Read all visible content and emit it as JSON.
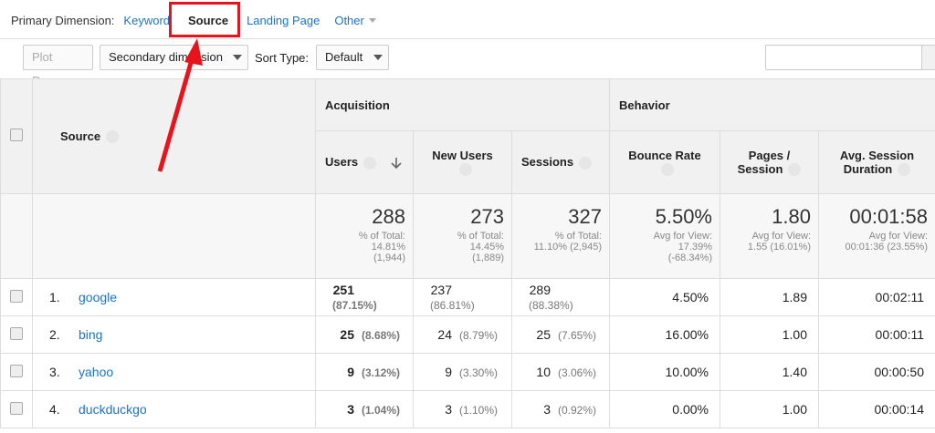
{
  "primary_dimension": {
    "label": "Primary Dimension:",
    "options": [
      "Keyword",
      "Source",
      "Landing Page",
      "Other"
    ]
  },
  "toolbar": {
    "plot_rows": "Plot Rows",
    "secondary_dimension": "Secondary dimension",
    "sort_type_label": "Sort Type:",
    "sort_type": "Default"
  },
  "table": {
    "dimension_header": "Source",
    "groups": [
      "Acquisition",
      "Behavior"
    ],
    "columns": [
      "Users",
      "New Users",
      "Sessions",
      "Bounce Rate",
      "Pages / Session",
      "Avg. Session Duration"
    ],
    "totals": [
      {
        "value": "288",
        "note": [
          "% of Total:",
          "14.81%",
          "(1,944)"
        ]
      },
      {
        "value": "273",
        "note": [
          "% of Total:",
          "14.45%",
          "(1,889)"
        ]
      },
      {
        "value": "327",
        "note": [
          "% of Total:",
          "11.10% (2,945)"
        ]
      },
      {
        "value": "5.50%",
        "note": [
          "Avg for View:",
          "17.39%",
          "(-68.34%)"
        ]
      },
      {
        "value": "1.80",
        "note": [
          "Avg for View:",
          "1.55 (16.01%)"
        ]
      },
      {
        "value": "00:01:58",
        "note": [
          "Avg for View:",
          "00:01:36 (23.55%)"
        ]
      }
    ],
    "rows": [
      {
        "rank": "1.",
        "source": "google",
        "cells": [
          {
            "value": "251",
            "share": "(87.15%)"
          },
          {
            "value": "237",
            "share": "(86.81%)"
          },
          {
            "value": "289",
            "share": "(88.38%)"
          },
          {
            "value": "4.50%"
          },
          {
            "value": "1.89"
          },
          {
            "value": "00:02:11"
          }
        ]
      },
      {
        "rank": "2.",
        "source": "bing",
        "cells": [
          {
            "value": "25",
            "share": "(8.68%)"
          },
          {
            "value": "24",
            "share": "(8.79%)"
          },
          {
            "value": "25",
            "share": "(7.65%)"
          },
          {
            "value": "16.00%"
          },
          {
            "value": "1.00"
          },
          {
            "value": "00:00:11"
          }
        ]
      },
      {
        "rank": "3.",
        "source": "yahoo",
        "cells": [
          {
            "value": "9",
            "share": "(3.12%)"
          },
          {
            "value": "9",
            "share": "(3.30%)"
          },
          {
            "value": "10",
            "share": "(3.06%)"
          },
          {
            "value": "10.00%"
          },
          {
            "value": "1.40"
          },
          {
            "value": "00:00:50"
          }
        ]
      },
      {
        "rank": "4.",
        "source": "duckduckgo",
        "cells": [
          {
            "value": "3",
            "share": "(1.04%)"
          },
          {
            "value": "3",
            "share": "(1.10%)"
          },
          {
            "value": "3",
            "share": "(0.92%)"
          },
          {
            "value": "0.00%"
          },
          {
            "value": "1.00"
          },
          {
            "value": "00:00:14"
          }
        ]
      }
    ]
  }
}
